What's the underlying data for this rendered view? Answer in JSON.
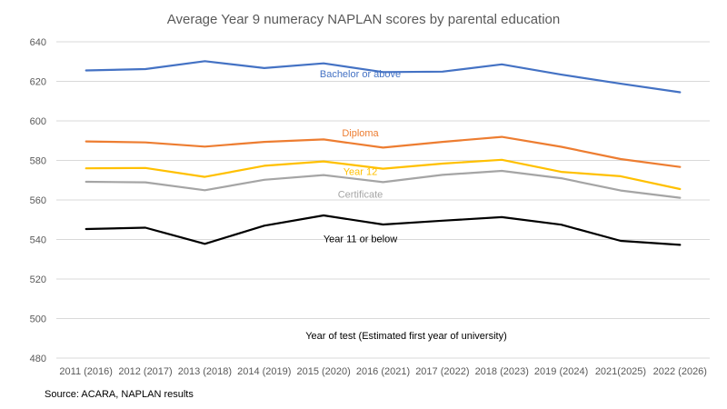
{
  "chart_data": {
    "type": "line",
    "title": "Average Year 9 numeracy NAPLAN scores by parental education",
    "xlabel": "Year of test (Estimated first year of university)",
    "ylabel": "",
    "ylim": [
      480,
      640
    ],
    "yticks": [
      480,
      500,
      520,
      540,
      560,
      580,
      600,
      620,
      640
    ],
    "grid": true,
    "legend": "inline labels",
    "categories": [
      "2011 (2016)",
      "2012 (2017)",
      "2013 (2018)",
      "2014 (2019)",
      "2015 (2020)",
      "2016 (2021)",
      "2017 (2022)",
      "2018 (2023)",
      "2019 (2024)",
      "2021(2025)",
      "2022 (2026)"
    ],
    "series": [
      {
        "name": "Bachelor or above",
        "color": "#4472C4",
        "label_at": 5,
        "label_offset": 624.0,
        "values": [
          625.5,
          626.2,
          630.2,
          626.7,
          629.1,
          624.7,
          624.9,
          628.6,
          623.4,
          618.8,
          614.5
        ]
      },
      {
        "name": "Diploma",
        "color": "#ED7D31",
        "label_at": 5,
        "label_offset": 594.0,
        "values": [
          589.6,
          589.1,
          587.0,
          589.4,
          590.6,
          586.5,
          589.4,
          591.9,
          586.9,
          580.7,
          576.7
        ]
      },
      {
        "name": "Year 12",
        "color": "#FFC000",
        "label_at": 5,
        "label_offset": 574.5,
        "values": [
          576.0,
          576.2,
          571.7,
          577.3,
          579.5,
          575.8,
          578.4,
          580.3,
          574.2,
          572.0,
          565.5
        ]
      },
      {
        "name": "Certificate",
        "color": "#A5A5A5",
        "label_at": 5,
        "label_offset": 563.0,
        "values": [
          569.2,
          568.9,
          564.9,
          570.2,
          572.6,
          569.0,
          572.7,
          574.7,
          571.0,
          564.8,
          561.1
        ]
      },
      {
        "name": "Year 11 or below",
        "color": "#000000",
        "label_at": 5,
        "label_offset": 540.5,
        "values": [
          545.3,
          546.0,
          537.8,
          547.0,
          552.2,
          547.6,
          549.5,
          551.3,
          547.5,
          539.3,
          537.3
        ]
      }
    ]
  },
  "source": "Source: ACARA, NAPLAN results"
}
